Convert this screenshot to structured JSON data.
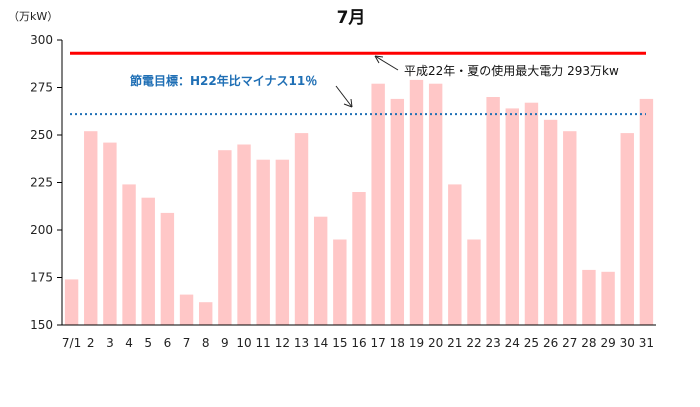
{
  "chart_data": {
    "type": "bar",
    "title": "7月",
    "unit_label": "（万kW）",
    "categories": [
      "7/1",
      "2",
      "3",
      "4",
      "5",
      "6",
      "7",
      "8",
      "9",
      "10",
      "11",
      "12",
      "13",
      "14",
      "15",
      "16",
      "17",
      "18",
      "19",
      "20",
      "21",
      "22",
      "23",
      "24",
      "25",
      "26",
      "27",
      "28",
      "29",
      "30",
      "31"
    ],
    "values": [
      174,
      252,
      246,
      224,
      217,
      209,
      166,
      162,
      242,
      245,
      237,
      237,
      251,
      207,
      195,
      220,
      277,
      269,
      279,
      277,
      224,
      195,
      270,
      264,
      267,
      258,
      252,
      179,
      178,
      251,
      269
    ],
    "ylim": [
      150,
      300
    ],
    "yticks": [
      150,
      175,
      200,
      225,
      250,
      275,
      300
    ],
    "bar_color": "#ffc7c7",
    "reference_lines": [
      {
        "value": 293,
        "label": "平成22年・夏の使用最大電力 293万kw",
        "color": "#ff0000",
        "style": "solid"
      },
      {
        "value": 261,
        "label": "節電目標：H22年比マイナス11％",
        "color": "#1f6fb5",
        "style": "dotted"
      }
    ],
    "grid": false,
    "legend": "none"
  }
}
